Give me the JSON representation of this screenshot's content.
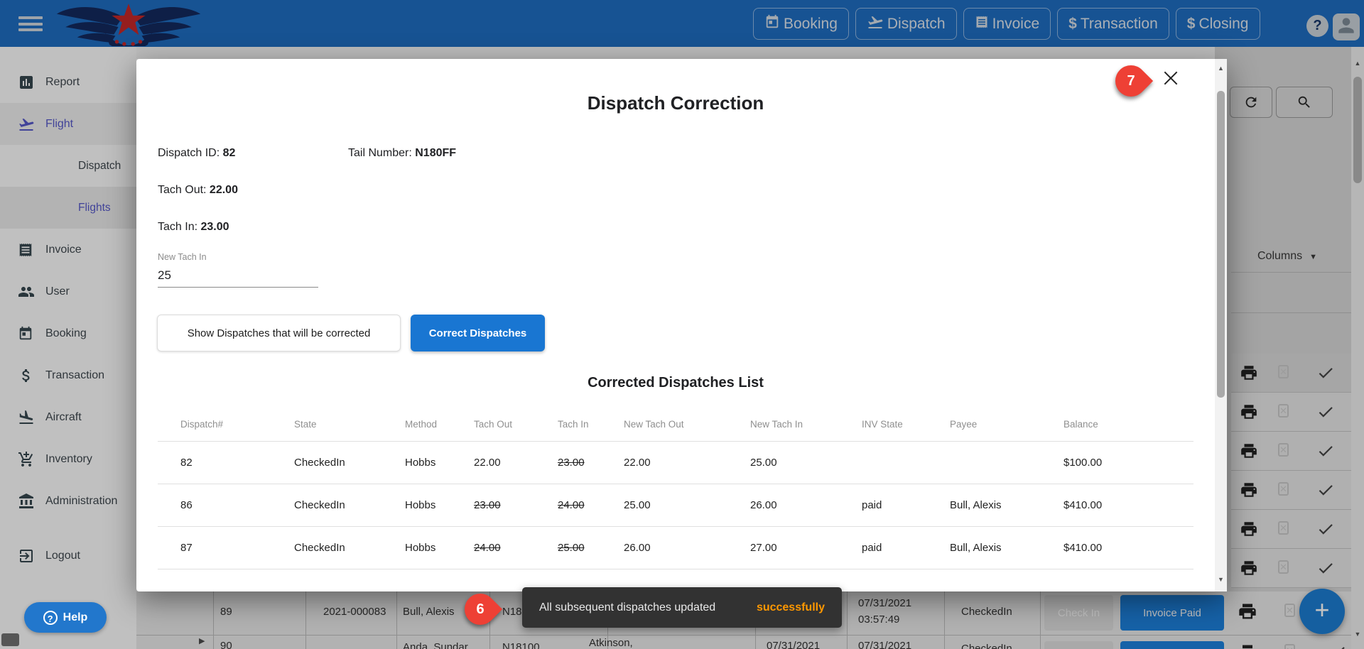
{
  "topbar": {
    "nav": [
      {
        "label": "Booking"
      },
      {
        "label": "Dispatch"
      },
      {
        "label": "Invoice"
      },
      {
        "label": "Transaction"
      },
      {
        "label": "Closing"
      }
    ],
    "dollar_glyph": "$",
    "help_glyph": "?"
  },
  "sidebar": {
    "items": [
      {
        "label": "Report"
      },
      {
        "label": "Flight"
      },
      {
        "label": "Dispatch"
      },
      {
        "label": "Flights"
      },
      {
        "label": "Invoice"
      },
      {
        "label": "User"
      },
      {
        "label": "Booking"
      },
      {
        "label": "Transaction"
      },
      {
        "label": "Aircraft"
      },
      {
        "label": "Inventory"
      },
      {
        "label": "Administration"
      },
      {
        "label": "Logout"
      }
    ]
  },
  "help_button": {
    "label": "Help",
    "glyph": "?"
  },
  "modal": {
    "title": "Dispatch Correction",
    "info": {
      "dispatch_id_label": "Dispatch ID: ",
      "dispatch_id": "82",
      "tail_label": "Tail Number: ",
      "tail": "N180FF",
      "tach_out_label": "Tach Out: ",
      "tach_out": "22.00",
      "tach_in_label": "Tach In: ",
      "tach_in": "23.00"
    },
    "input": {
      "label": "New Tach In",
      "value": "25"
    },
    "buttons": {
      "show": "Show Dispatches that will be corrected",
      "correct": "Correct Dispatches"
    },
    "list_title": "Corrected Dispatches List",
    "table": {
      "headers": [
        "Dispatch#",
        "State",
        "Method",
        "Tach Out",
        "Tach In",
        "New Tach Out",
        "New Tach In",
        "INV State",
        "Payee",
        "Balance"
      ],
      "rows": [
        {
          "cells": [
            {
              "v": "82"
            },
            {
              "v": "CheckedIn"
            },
            {
              "v": "Hobbs"
            },
            {
              "v": "22.00"
            },
            {
              "v": "23.00",
              "struck": true
            },
            {
              "v": "22.00"
            },
            {
              "v": "25.00"
            },
            {
              "v": ""
            },
            {
              "v": ""
            },
            {
              "v": "$100.00"
            }
          ]
        },
        {
          "cells": [
            {
              "v": "86"
            },
            {
              "v": "CheckedIn"
            },
            {
              "v": "Hobbs"
            },
            {
              "v": "23.00",
              "struck": true
            },
            {
              "v": "24.00",
              "struck": true
            },
            {
              "v": "25.00"
            },
            {
              "v": "26.00"
            },
            {
              "v": "paid"
            },
            {
              "v": "Bull, Alexis"
            },
            {
              "v": "$410.00"
            }
          ]
        },
        {
          "cells": [
            {
              "v": "87"
            },
            {
              "v": "CheckedIn"
            },
            {
              "v": "Hobbs"
            },
            {
              "v": "24.00",
              "struck": true
            },
            {
              "v": "25.00",
              "struck": true
            },
            {
              "v": "26.00"
            },
            {
              "v": "27.00"
            },
            {
              "v": "paid"
            },
            {
              "v": "Bull, Alexis"
            },
            {
              "v": "$410.00"
            }
          ]
        }
      ]
    }
  },
  "toast": {
    "message": "All subsequent dispatches updated",
    "status": "successfully"
  },
  "annotations": {
    "badge_7": "7",
    "badge_6": "6"
  },
  "background": {
    "columns_label": "Columns",
    "check_in_label": "Check In",
    "invoice_paid_label": "Invoice Paid",
    "row89": {
      "dispatch": "89",
      "invoice_no": "2021-000083",
      "payee": "Bull, Alexis",
      "tail": "N182",
      "date": "07/31/2021",
      "time": "03:57:49",
      "state": "CheckedIn"
    },
    "row90": {
      "dispatch": "90",
      "payee": "Anda, Sundar",
      "tail": "N18100",
      "renter": "Atkinson,",
      "date_out": "07/31/2021",
      "date_in": "07/31/2021",
      "state": "CheckedIn"
    }
  },
  "colors": {
    "accent": "#1976d2",
    "topbar": "#1f6dc2",
    "toast_highlight": "#ff9800",
    "annotation_red": "#ee4035"
  }
}
